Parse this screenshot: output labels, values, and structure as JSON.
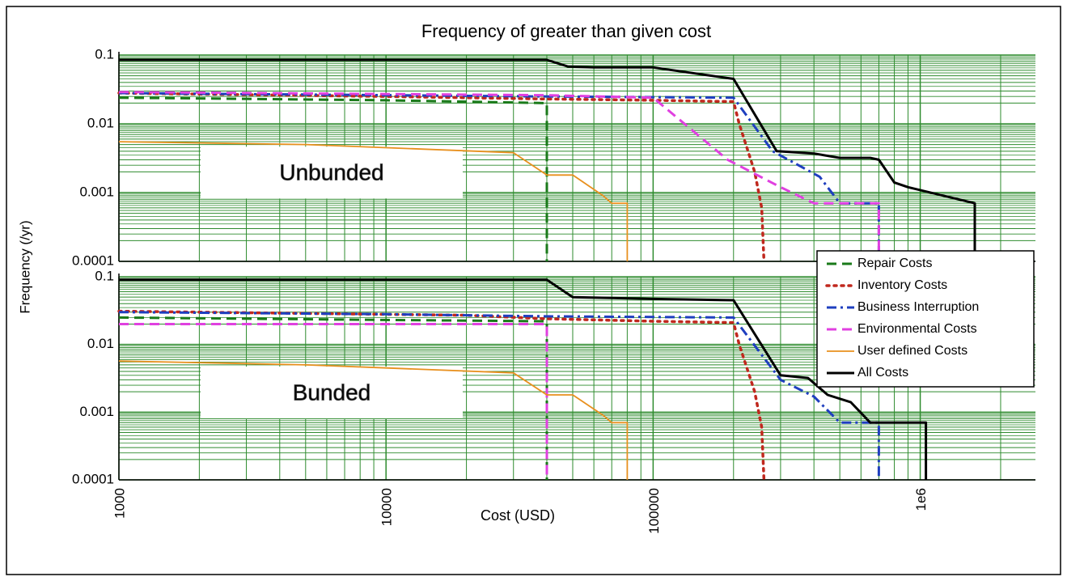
{
  "chart_data": [
    {
      "type": "line",
      "title": "Frequency of greater than given cost",
      "y_label": "Frequency (/yr)",
      "annotation": "Unbunded",
      "xlog": true,
      "ylog": true,
      "grid": true,
      "grid_color": "#2e8b2e",
      "legend": "right",
      "xlim": [
        1000,
        2700000
      ],
      "xticks": [
        1000,
        10000,
        100000,
        {
          "value": 1000000,
          "label": "1e6"
        }
      ],
      "ylim": [
        0.0001,
        0.1
      ],
      "yticks": [
        0.0001,
        0.001,
        0.01,
        0.1
      ],
      "series": [
        {
          "name": "Repair Costs",
          "color": "#1a7a1a",
          "linestyle": "dashed",
          "linewidth": 3,
          "x": [
            1000,
            10000,
            40000,
            40000
          ],
          "values": [
            0.024,
            0.022,
            0.02,
            0.0001
          ]
        },
        {
          "name": "Inventory Costs",
          "color": "#c0281e",
          "linestyle": "dotted",
          "linewidth": 3.5,
          "x": [
            1000,
            10000,
            40000,
            100000,
            200000,
            210000,
            240000,
            255000,
            260000
          ],
          "values": [
            0.028,
            0.025,
            0.023,
            0.022,
            0.021,
            0.01,
            0.002,
            0.0006,
            0.0001
          ]
        },
        {
          "name": "Business Interruption",
          "color": "#1f3fbf",
          "linestyle": "dashdot",
          "linewidth": 3,
          "x": [
            1000,
            40000,
            200000,
            280000,
            420000,
            500000,
            700000,
            700000
          ],
          "values": [
            0.028,
            0.025,
            0.024,
            0.004,
            0.0017,
            0.0007,
            0.0007,
            0.0001
          ]
        },
        {
          "name": "Environmental Costs",
          "color": "#e040e0",
          "linestyle": "dashed",
          "linewidth": 3,
          "x": [
            1000,
            40000,
            100000,
            190000,
            300000,
            400000,
            700000,
            700000
          ],
          "values": [
            0.029,
            0.026,
            0.024,
            0.003,
            0.0012,
            0.0007,
            0.0007,
            0.0001
          ]
        },
        {
          "name": "User defined Costs",
          "color": "#e8901e",
          "linestyle": "solid",
          "linewidth": 1.8,
          "x": [
            1000,
            5000,
            10000,
            30000,
            40000,
            50000,
            65000,
            70000,
            80000,
            80000
          ],
          "values": [
            0.0055,
            0.005,
            0.0045,
            0.0038,
            0.0018,
            0.0018,
            0.0009,
            0.0007,
            0.0007,
            0.0001
          ]
        },
        {
          "name": "All Costs",
          "color": "#000000",
          "linestyle": "solid",
          "linewidth": 3,
          "x": [
            1000,
            40000,
            48000,
            60000,
            100000,
            200000,
            290000,
            400000,
            500000,
            650000,
            700000,
            800000,
            900000,
            1600000,
            1600000
          ],
          "values": [
            0.085,
            0.085,
            0.068,
            0.066,
            0.066,
            0.045,
            0.004,
            0.0037,
            0.0032,
            0.0032,
            0.003,
            0.0014,
            0.0012,
            0.0007,
            0.0001
          ]
        }
      ]
    },
    {
      "type": "line",
      "x_label": "Cost (USD)",
      "annotation": "Bunded",
      "xlog": true,
      "ylog": true,
      "grid": true,
      "grid_color": "#2e8b2e",
      "xlim": [
        1000,
        2700000
      ],
      "xticks": [
        1000,
        10000,
        100000,
        {
          "value": 1000000,
          "label": "1e6"
        }
      ],
      "ylim": [
        0.0001,
        0.1
      ],
      "yticks": [
        0.0001,
        0.001,
        0.01,
        0.1
      ],
      "series": [
        {
          "name": "Repair Costs",
          "color": "#1a7a1a",
          "linestyle": "dashed",
          "linewidth": 3,
          "x": [
            1000,
            10000,
            40000,
            40000
          ],
          "values": [
            0.025,
            0.023,
            0.022,
            0.0001
          ]
        },
        {
          "name": "Inventory Costs",
          "color": "#c0281e",
          "linestyle": "dotted",
          "linewidth": 3.5,
          "x": [
            1000,
            20000,
            40000,
            100000,
            200000,
            210000,
            240000,
            255000,
            260000
          ],
          "values": [
            0.031,
            0.027,
            0.024,
            0.022,
            0.021,
            0.01,
            0.002,
            0.0006,
            0.0001
          ]
        },
        {
          "name": "Business Interruption",
          "color": "#1f3fbf",
          "linestyle": "dashdot",
          "linewidth": 3,
          "x": [
            1000,
            10000,
            40000,
            200000,
            300000,
            400000,
            500000,
            700000,
            700000
          ],
          "values": [
            0.03,
            0.028,
            0.026,
            0.025,
            0.003,
            0.0017,
            0.0007,
            0.0007,
            0.0001
          ]
        },
        {
          "name": "Environmental Costs",
          "color": "#e040e0",
          "linestyle": "dashed",
          "linewidth": 3,
          "x": [
            1000,
            40000,
            40000
          ],
          "values": [
            0.02,
            0.02,
            0.0001
          ]
        },
        {
          "name": "User defined Costs",
          "color": "#e8901e",
          "linestyle": "solid",
          "linewidth": 1.8,
          "x": [
            1000,
            5000,
            10000,
            30000,
            40000,
            50000,
            65000,
            70000,
            80000,
            80000
          ],
          "values": [
            0.0057,
            0.005,
            0.0045,
            0.0038,
            0.0018,
            0.0018,
            0.0009,
            0.0007,
            0.0007,
            0.0001
          ]
        },
        {
          "name": "All Costs",
          "color": "#000000",
          "linestyle": "solid",
          "linewidth": 3,
          "x": [
            1000,
            40000,
            50000,
            100000,
            200000,
            300000,
            380000,
            450000,
            550000,
            650000,
            1050000,
            1050000
          ],
          "values": [
            0.09,
            0.09,
            0.05,
            0.047,
            0.045,
            0.0035,
            0.0032,
            0.0018,
            0.0014,
            0.0007,
            0.0007,
            0.0001
          ]
        }
      ]
    }
  ]
}
